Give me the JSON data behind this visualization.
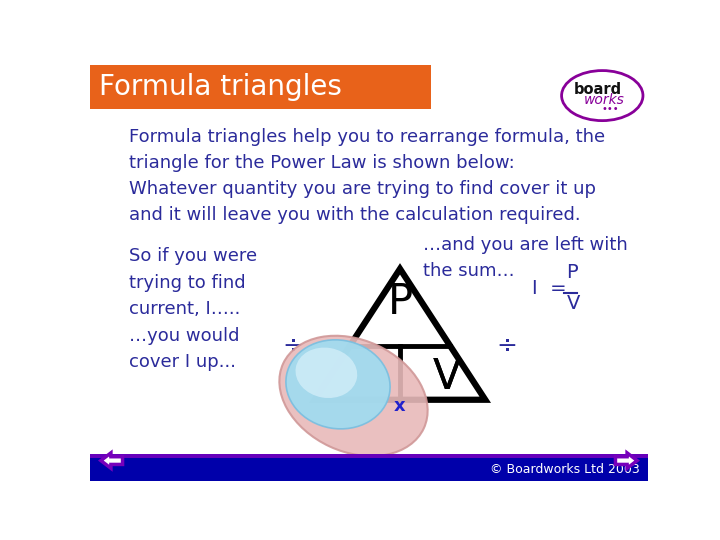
{
  "title": "Formula triangles",
  "title_bg": "#E8621A",
  "title_color": "#FFFFFF",
  "bg_color": "#FFFFFF",
  "body_text_color": "#2B2B9B",
  "para1": "Formula triangles help you to rearrange formula, the\ntriangle for the Power Law is shown below:",
  "para2": "Whatever quantity you are trying to find cover it up\nand it will leave you with the calculation required.",
  "left_text1": "So if you were\ntrying to find\ncurrent, I…..",
  "left_text2": "…you would\ncover I up...",
  "right_text1": "…and you are left with\nthe sum…",
  "right_text2": "I  =",
  "formula_num": "P",
  "formula_den": "V",
  "footer": "© Boardworks Ltd 2003",
  "bottom_bar_color": "#0000AA",
  "bottom_line_color": "#6600BB",
  "arrow_color": "#7700BB",
  "div_color": "#2B2B9B"
}
